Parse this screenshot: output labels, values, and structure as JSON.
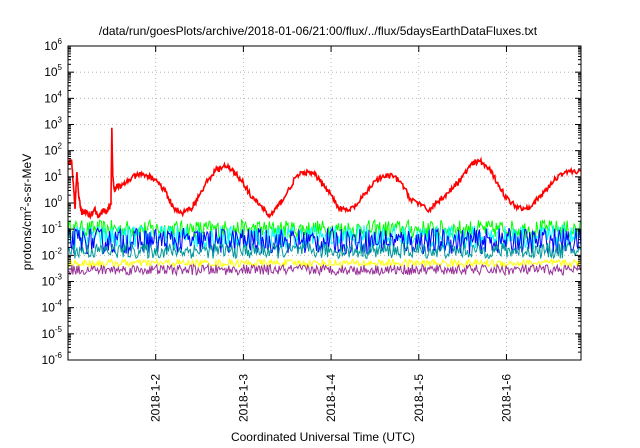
{
  "chart_data": {
    "type": "line",
    "title": "/data/run/goesPlots/archive/2018-01-06/21:00/flux/../flux/5daysEarthDataFluxes.txt",
    "xlabel": "Coordinated Universal Time (UTC)",
    "ylabel": {
      "parts": [
        "protons/cm",
        "2",
        "-s-sr-MeV"
      ]
    },
    "yscale": "log",
    "ylim": [
      1e-06,
      1000000.0
    ],
    "xlim": [
      0,
      5.85
    ],
    "grid": true,
    "xticks": [
      {
        "x": 1,
        "label": "2018-1-2"
      },
      {
        "x": 2,
        "label": "2018-1-3"
      },
      {
        "x": 3,
        "label": "2018-1-4"
      },
      {
        "x": 4,
        "label": "2018-1-5"
      },
      {
        "x": 5,
        "label": "2018-1-6"
      }
    ],
    "yticks": [
      {
        "value": 1e-06,
        "base": "10",
        "exp": "-6"
      },
      {
        "value": 1e-05,
        "base": "10",
        "exp": "-5"
      },
      {
        "value": 0.0001,
        "base": "10",
        "exp": "-4"
      },
      {
        "value": 0.001,
        "base": "10",
        "exp": "-3"
      },
      {
        "value": 0.01,
        "base": "10",
        "exp": "-2"
      },
      {
        "value": 0.1,
        "base": "10",
        "exp": "-1"
      },
      {
        "value": 1,
        "base": "10",
        "exp": "0"
      },
      {
        "value": 10,
        "base": "10",
        "exp": "1"
      },
      {
        "value": 100,
        "base": "10",
        "exp": "2"
      },
      {
        "value": 1000,
        "base": "10",
        "exp": "3"
      },
      {
        "value": 10000,
        "base": "10",
        "exp": "4"
      },
      {
        "value": 100000,
        "base": "10",
        "exp": "5"
      },
      {
        "value": 1000000,
        "base": "10",
        "exp": "6"
      }
    ],
    "series": [
      {
        "color": "#ff0000",
        "x": [
          0,
          0.04,
          0.08,
          0.1,
          0.13,
          0.16,
          0.2,
          0.25,
          0.3,
          0.35,
          0.4,
          0.45,
          0.49,
          0.5,
          0.51,
          0.53,
          0.56,
          0.6,
          0.7,
          0.8,
          0.9,
          1.0,
          1.1,
          1.2,
          1.3,
          1.4,
          1.5,
          1.6,
          1.7,
          1.8,
          1.9,
          2.0,
          2.1,
          2.2,
          2.3,
          2.4,
          2.5,
          2.6,
          2.7,
          2.8,
          2.9,
          3.0,
          3.1,
          3.2,
          3.3,
          3.4,
          3.5,
          3.6,
          3.7,
          3.8,
          3.9,
          4.0,
          4.1,
          4.2,
          4.3,
          4.4,
          4.5,
          4.6,
          4.7,
          4.8,
          4.9,
          5.0,
          5.1,
          5.2,
          5.3,
          5.4,
          5.5,
          5.6,
          5.7,
          5.85
        ],
        "y": [
          30,
          45,
          0.6,
          15,
          1.2,
          0.4,
          0.5,
          0.3,
          0.6,
          0.3,
          0.5,
          0.5,
          0.9,
          750,
          12,
          3,
          5,
          4,
          8,
          12,
          11,
          8,
          3,
          0.7,
          0.4,
          0.6,
          2,
          8,
          20,
          25,
          15,
          6,
          1.5,
          0.8,
          0.3,
          0.8,
          2.5,
          10,
          15,
          13,
          6,
          2,
          0.6,
          0.5,
          0.9,
          2.5,
          7,
          10,
          11,
          6,
          1.5,
          1.0,
          0.5,
          1.0,
          2,
          4,
          10,
          30,
          40,
          20,
          6,
          1.5,
          0.8,
          0.6,
          0.9,
          2,
          5,
          12,
          16,
          17
        ]
      },
      {
        "color": "#00ff00",
        "level": 0.1,
        "spread": 0.35
      },
      {
        "color": "#00ffff",
        "level": 0.05,
        "spread": 0.45
      },
      {
        "color": "#0000ff",
        "level": 0.035,
        "spread": 0.5
      },
      {
        "color": "#009999",
        "level": 0.015,
        "spread": 0.3
      },
      {
        "color": "#ffff00",
        "level": 0.005,
        "spread": 0.15
      },
      {
        "color": "#993399",
        "level": 0.0028,
        "spread": 0.2
      }
    ]
  }
}
